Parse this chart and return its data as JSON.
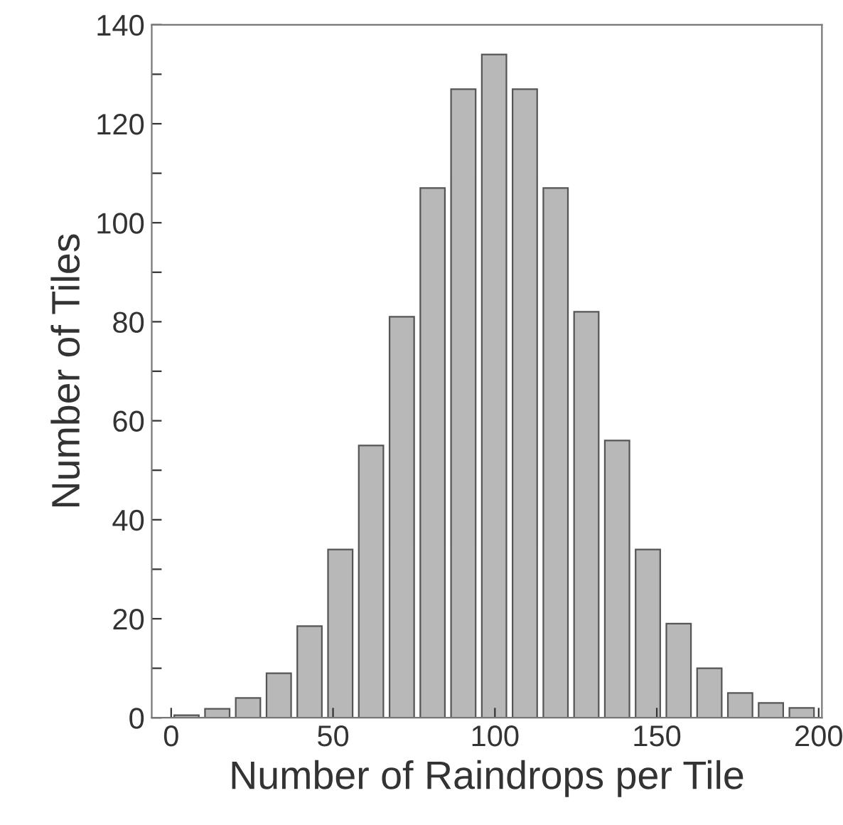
{
  "chart_data": {
    "type": "histogram",
    "xlabel": "Number of Raindrops per Tile",
    "ylabel": "Number of Tiles",
    "bins": [
      0,
      9.5,
      19,
      28.5,
      38,
      47.5,
      57,
      66.5,
      76,
      85.5,
      95,
      104.5,
      114,
      123.5,
      133,
      142.5,
      152,
      161.5,
      171,
      180.5,
      190,
      199.5
    ],
    "values": [
      0.5,
      1.8,
      4,
      9,
      18.5,
      34,
      55,
      81,
      107,
      127,
      134,
      127,
      107,
      82,
      56,
      34,
      19,
      10,
      5,
      3,
      2
    ],
    "color": "#b8b8b8",
    "xlim": [
      -6,
      201
    ],
    "ylim": [
      0,
      140
    ],
    "xticks": [
      0,
      50,
      100,
      150,
      200
    ],
    "yticks": [
      0,
      {
        "value": 10,
        "label": null
      },
      20,
      {
        "value": 30,
        "label": null
      },
      40,
      {
        "value": 50,
        "label": null
      },
      60,
      {
        "value": 70,
        "label": null
      },
      80,
      {
        "value": 90,
        "label": null
      },
      100,
      {
        "value": 110,
        "label": null
      },
      120,
      {
        "value": 130,
        "label": null
      },
      140
    ],
    "grid": false
  }
}
